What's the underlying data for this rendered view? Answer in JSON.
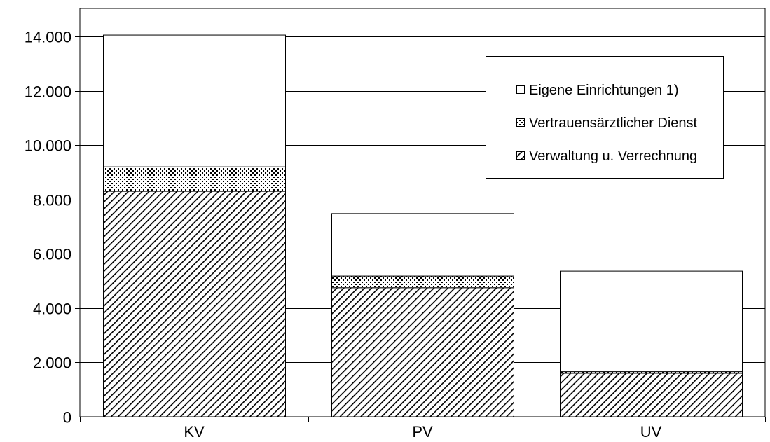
{
  "chart_data": {
    "type": "bar",
    "stacked": true,
    "title": "",
    "xlabel": "",
    "ylabel": "",
    "categories": [
      "KV",
      "PV",
      "UV"
    ],
    "ylim": [
      0,
      14000
    ],
    "yticks": [
      0,
      2000,
      4000,
      6000,
      8000,
      10000,
      12000,
      14000
    ],
    "ytick_labels": [
      "0",
      "2.000",
      "4.000",
      "6.000",
      "8.000",
      "10.000",
      "12.000",
      "14.000"
    ],
    "grid": "horizontal",
    "legend_position": "top-right",
    "series": [
      {
        "name": "Verwaltung u. Verrechnung",
        "pattern": "diagonal-hatch",
        "values": [
          8300,
          4750,
          1600
        ]
      },
      {
        "name": "Vertrauensärztlicher Dienst",
        "pattern": "dotted",
        "values": [
          900,
          430,
          60
        ]
      },
      {
        "name": "Eigene Einrichtungen 1)",
        "pattern": "white",
        "values": [
          4850,
          2300,
          3700
        ]
      }
    ],
    "legend_order": [
      2,
      1,
      0
    ],
    "colors": {
      "bar_edge": "#000000",
      "hatch": "#000000",
      "fill": "#ffffff",
      "grid": "#000000"
    }
  }
}
